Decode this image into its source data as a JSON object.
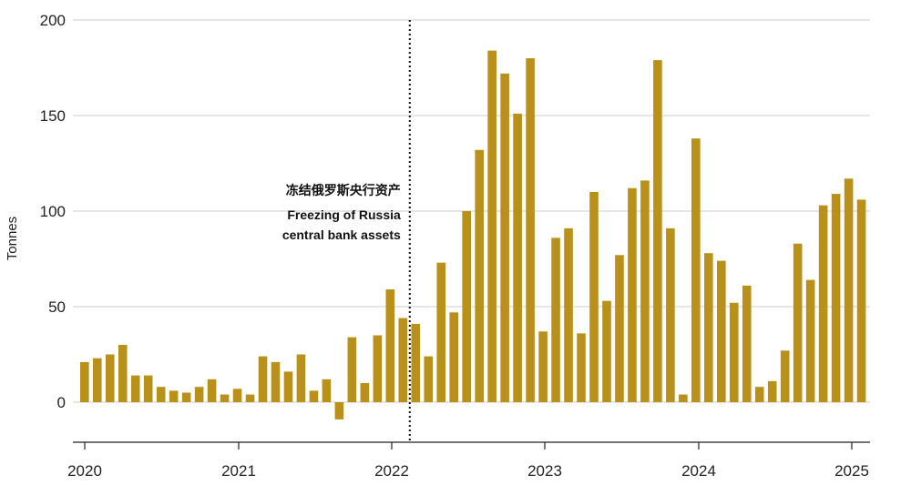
{
  "chart_data": {
    "type": "bar",
    "title": "",
    "xlabel": "",
    "ylabel": "Tonnes",
    "ylim": [
      -10,
      200
    ],
    "yticks": [
      0,
      50,
      100,
      150,
      200
    ],
    "xtick_labels": [
      "2020",
      "2021",
      "2022",
      "2023",
      "2024",
      "2025"
    ],
    "grid": true,
    "colors": {
      "bar": "#b8901a",
      "grid": "#cccccc",
      "annotation_line": "#111111"
    },
    "annotation": {
      "label_cn": "冻结俄罗斯央行资产",
      "label_line1": "Freezing of Russia",
      "label_line2": "central bank assets",
      "after_month_index": 25
    },
    "start": "2020-01",
    "values": [
      21,
      23,
      25,
      30,
      14,
      14,
      8,
      6,
      5,
      8,
      12,
      4,
      7,
      4,
      24,
      21,
      16,
      25,
      6,
      12,
      -9,
      34,
      10,
      35,
      59,
      44,
      41,
      24,
      73,
      47,
      100,
      132,
      184,
      172,
      151,
      180,
      37,
      86,
      91,
      36,
      110,
      53,
      77,
      112,
      116,
      179,
      91,
      4,
      138,
      78,
      74,
      52,
      61,
      8,
      11,
      27,
      83,
      64,
      103,
      109,
      117,
      106
    ]
  }
}
